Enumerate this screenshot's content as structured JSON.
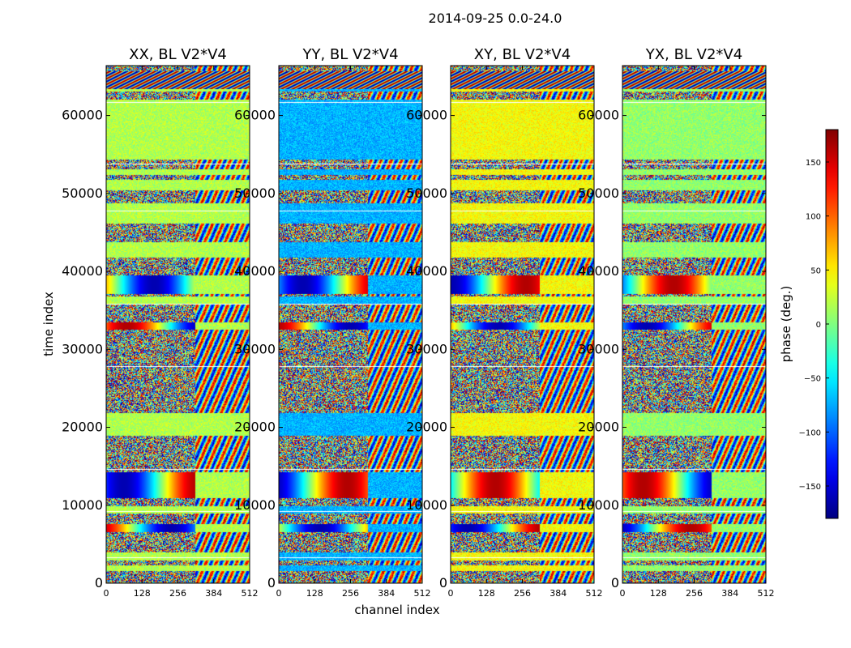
{
  "figure_title": "2014-09-25 0.0-24.0",
  "chart_data": {
    "type": "heatmap",
    "title": "2014-09-25 0.0-24.0",
    "xlabel": "channel index",
    "ylabel": "time index",
    "xlim": [
      0,
      512
    ],
    "ylim": [
      0,
      66400
    ],
    "x_ticks": [
      0,
      128,
      256,
      384,
      512
    ],
    "y_ticks": [
      0,
      10000,
      20000,
      30000,
      40000,
      50000,
      60000
    ],
    "panels": [
      {
        "title": "XX, BL V2*V4",
        "pol": "XX"
      },
      {
        "title": "YY, BL V2*V4",
        "pol": "YY"
      },
      {
        "title": "XY, BL V2*V4",
        "pol": "XY"
      },
      {
        "title": "YX, BL V2*V4",
        "pol": "YX"
      }
    ],
    "colorbar": {
      "label": "phase (deg.)",
      "range": [
        -180,
        180
      ],
      "ticks": [
        -150,
        -100,
        -50,
        0,
        50,
        100,
        150
      ],
      "colormap": "jet"
    }
  }
}
